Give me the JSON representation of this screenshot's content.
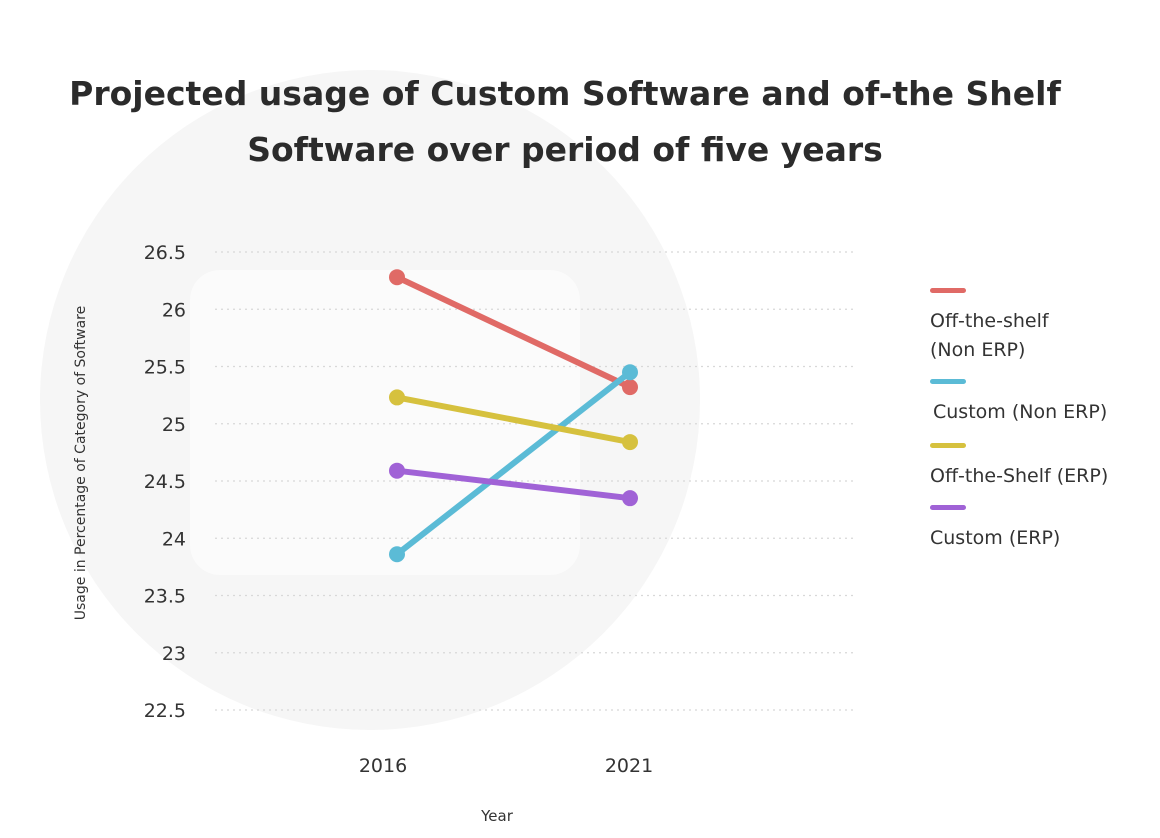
{
  "chart_data": {
    "type": "line",
    "title": "Projected usage of Custom Software and of-the Shelf Software over period of five years",
    "title_lines": [
      "Projected usage of Custom Software and of-the Shelf",
      "Software over period of five years"
    ],
    "xlabel": "Year",
    "ylabel": "Usage in Percentage of Category of Software",
    "categories": [
      "2016",
      "2021"
    ],
    "ylim": [
      22.5,
      26.5
    ],
    "yticks": [
      "26.5",
      "26",
      "25.5",
      "25",
      "24.5",
      "24",
      "23.5",
      "23",
      "22.5"
    ],
    "grid": true,
    "legend_position": "right",
    "series": [
      {
        "name": "Off-the-shelf (Non ERP)",
        "label_lines": [
          "Off-the-shelf",
          "(Non ERP)"
        ],
        "color": "#e06a66",
        "values": [
          26.28,
          25.32
        ]
      },
      {
        "name": "Custom (Non ERP)",
        "label_lines": [
          "Custom (Non ERP)"
        ],
        "color": "#5bbbd6",
        "values": [
          23.86,
          25.45
        ]
      },
      {
        "name": "Off-the-Shelf (ERP)",
        "label_lines": [
          "Off-the-Shelf (ERP)"
        ],
        "color": "#d6c13e",
        "values": [
          25.23,
          24.84
        ]
      },
      {
        "name": "Custom (ERP)",
        "label_lines": [
          "Custom (ERP)"
        ],
        "color": "#a062d6",
        "values": [
          24.59,
          24.35
        ]
      }
    ]
  }
}
